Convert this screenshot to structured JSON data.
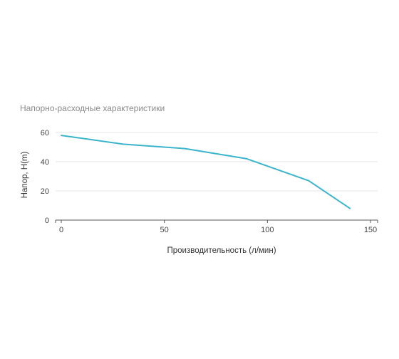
{
  "chart_data": {
    "type": "line",
    "title": "Напорно-расходные характеристики",
    "xlabel": "Производительность (л/мин)",
    "ylabel": "Напор, H(m)",
    "xlim": [
      0,
      150
    ],
    "ylim": [
      0,
      60
    ],
    "xticks": [
      0,
      50,
      100,
      150
    ],
    "yticks": [
      0,
      20,
      40,
      60
    ],
    "grid": true,
    "legend": "none",
    "series": [
      {
        "color": "#3bb5cc",
        "x": [
          0,
          30,
          60,
          90,
          120,
          140
        ],
        "y": [
          58,
          52,
          49,
          42,
          27,
          8
        ]
      }
    ]
  }
}
